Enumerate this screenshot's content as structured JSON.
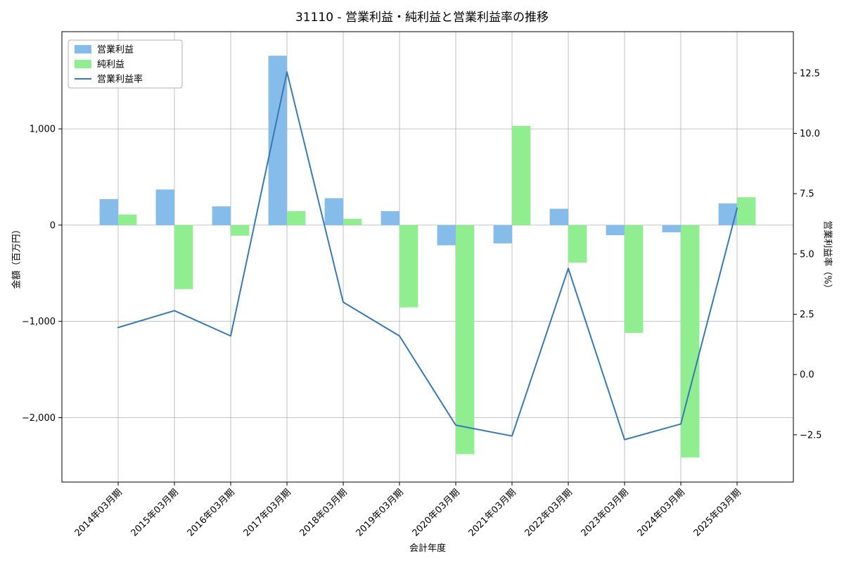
{
  "chart_data": {
    "type": "bar+line",
    "title": "31110 - 営業利益・純利益と営業利益率の推移",
    "xlabel": "会計年度",
    "ylabel_left": "金額（百万円）",
    "ylabel_right": "営業利益率（%）",
    "categories": [
      "2014年03月期",
      "2015年03月期",
      "2016年03月期",
      "2017年03月期",
      "2018年03月期",
      "2019年03月期",
      "2020年03月期",
      "2021年03月期",
      "2022年03月期",
      "2023年03月期",
      "2024年03月期",
      "2025年03月期"
    ],
    "series": [
      {
        "name": "営業利益",
        "type": "bar",
        "axis": "left",
        "color": "#85bcea",
        "values": [
          270,
          370,
          195,
          1760,
          280,
          145,
          -210,
          -190,
          170,
          -105,
          -75,
          225
        ]
      },
      {
        "name": "純利益",
        "type": "bar",
        "axis": "left",
        "color": "#90ee90",
        "values": [
          110,
          -665,
          -110,
          145,
          65,
          -855,
          -2380,
          1030,
          -390,
          -1120,
          -2415,
          290
        ]
      },
      {
        "name": "営業利益率",
        "type": "line",
        "axis": "right",
        "color": "#3879b4",
        "values": [
          1.95,
          2.65,
          1.6,
          12.55,
          3.0,
          1.6,
          -2.1,
          -2.55,
          4.4,
          -2.7,
          -2.05,
          6.9
        ]
      }
    ],
    "ylim_left": [
      -2670,
      2010
    ],
    "ylim_right": [
      -4.46,
      14.22
    ],
    "yticks_left": [
      1000,
      0,
      -1000,
      -2000
    ],
    "yticks_right": [
      12.5,
      10.0,
      7.5,
      5.0,
      2.5,
      0.0,
      -2.5
    ],
    "grid": true,
    "legend_position": "upper left",
    "colors": {
      "grid": "#b0b0b0",
      "spine": "#000000",
      "background": "#ffffff"
    }
  }
}
